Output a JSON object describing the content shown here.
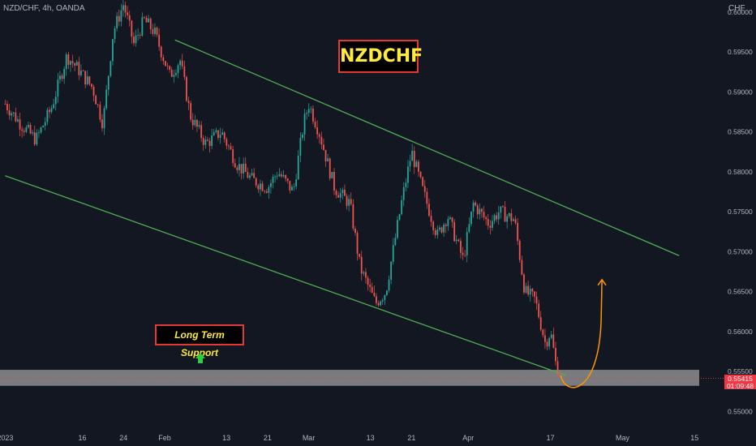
{
  "header": {
    "ticker": "NZD/CHF, 4h, OANDA",
    "currency": "CHF"
  },
  "annotations": {
    "title_box": "NZDCHF",
    "support_label": "Long Term Support",
    "support_arrow": "up-arrow-icon",
    "projection_arrow": "curved-up-arrow-icon"
  },
  "price_tag": {
    "price": "0.55415",
    "countdown": "01:09:48"
  },
  "colors": {
    "background": "#131722",
    "up_candle": "#26a69a",
    "down_candle": "#ef5350",
    "channel_line": "#4caf50",
    "projection": "#ff9800",
    "support_zone": "#9e9e9e",
    "price_tag": "#f23645"
  },
  "chart_data": {
    "type": "candlestick",
    "y_ticks": [
      "0.60000",
      "0.59500",
      "0.59000",
      "0.58500",
      "0.58000",
      "0.57500",
      "0.57000",
      "0.56500",
      "0.56000",
      "0.55500",
      "0.55000"
    ],
    "y_tick_values": [
      0.6,
      0.595,
      0.59,
      0.585,
      0.58,
      0.575,
      0.57,
      0.565,
      0.56,
      0.555,
      0.55
    ],
    "ylim": [
      0.548,
      0.6015
    ],
    "x_ticks": [
      "2023",
      "16",
      "24",
      "Feb",
      "13",
      "21",
      "Mar",
      "13",
      "21",
      "Apr",
      "17",
      "May",
      "15"
    ],
    "x_tick_dates": [
      "2023-01-01",
      "2023-01-16",
      "2023-01-24",
      "2023-02-01",
      "2023-02-13",
      "2023-02-21",
      "2023-03-01",
      "2023-03-13",
      "2023-03-21",
      "2023-04-01",
      "2023-04-17",
      "2023-05-01",
      "2023-05-15"
    ],
    "xlim": [
      "2022-12-31",
      "2023-05-20"
    ],
    "price_path": [
      [
        "2023-01-01",
        0.5885
      ],
      [
        "2023-01-04",
        0.586
      ],
      [
        "2023-01-07",
        0.584
      ],
      [
        "2023-01-10",
        0.588
      ],
      [
        "2023-01-13",
        0.5945
      ],
      [
        "2023-01-15",
        0.593
      ],
      [
        "2023-01-18",
        0.5905
      ],
      [
        "2023-01-20",
        0.586
      ],
      [
        "2023-01-22",
        0.5975
      ],
      [
        "2023-01-24",
        0.601
      ],
      [
        "2023-01-26",
        0.596
      ],
      [
        "2023-01-28",
        0.599
      ],
      [
        "2023-01-30",
        0.5975
      ],
      [
        "2023-02-02",
        0.592
      ],
      [
        "2023-02-04",
        0.594
      ],
      [
        "2023-02-06",
        0.587
      ],
      [
        "2023-02-09",
        0.5835
      ],
      [
        "2023-02-12",
        0.585
      ],
      [
        "2023-02-15",
        0.581
      ],
      [
        "2023-02-18",
        0.579
      ],
      [
        "2023-02-21",
        0.578
      ],
      [
        "2023-02-23",
        0.58
      ],
      [
        "2023-02-26",
        0.5775
      ],
      [
        "2023-02-28",
        0.586
      ],
      [
        "2023-03-01",
        0.5885
      ],
      [
        "2023-03-03",
        0.585
      ],
      [
        "2023-03-06",
        0.578
      ],
      [
        "2023-03-09",
        0.576
      ],
      [
        "2023-03-11",
        0.568
      ],
      [
        "2023-03-14",
        0.5635
      ],
      [
        "2023-03-16",
        0.565
      ],
      [
        "2023-03-19",
        0.576
      ],
      [
        "2023-03-21",
        0.5825
      ],
      [
        "2023-03-23",
        0.578
      ],
      [
        "2023-03-26",
        0.572
      ],
      [
        "2023-03-28",
        0.5745
      ],
      [
        "2023-03-31",
        0.569
      ],
      [
        "2023-04-02",
        0.576
      ],
      [
        "2023-04-05",
        0.5735
      ],
      [
        "2023-04-07",
        0.575
      ],
      [
        "2023-04-10",
        0.574
      ],
      [
        "2023-04-12",
        0.565
      ],
      [
        "2023-04-14",
        0.564
      ],
      [
        "2023-04-16",
        0.5585
      ],
      [
        "2023-04-17",
        0.56
      ],
      [
        "2023-04-18",
        0.556
      ],
      [
        "2023-04-19",
        0.5545
      ]
    ],
    "channel": {
      "upper": [
        [
          "2023-02-03",
          0.5965
        ],
        [
          "2023-05-12",
          0.5695
        ]
      ],
      "lower": [
        [
          "2023-01-01",
          0.5795
        ],
        [
          "2023-04-20",
          0.5545
        ]
      ]
    },
    "support_zone": [
      0.5532,
      0.5552
    ],
    "current_price": 0.55415
  }
}
